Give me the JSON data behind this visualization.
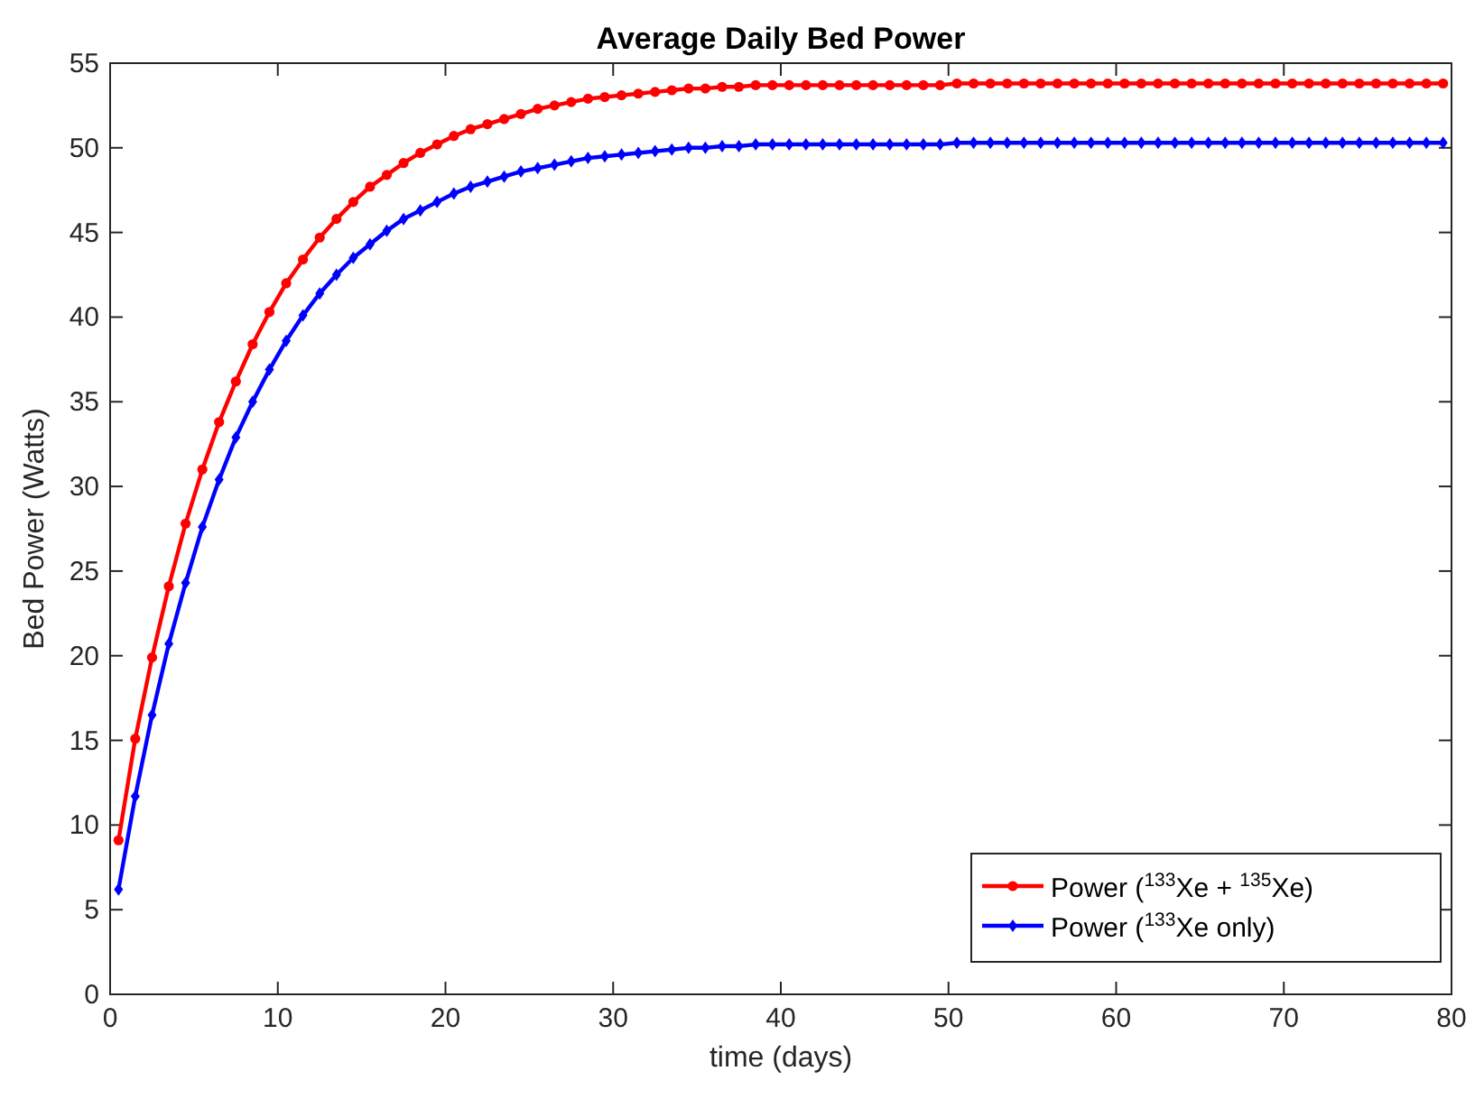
{
  "chart_data": {
    "type": "line",
    "title": "Average Daily Bed Power",
    "xlabel": "time (days)",
    "ylabel": "Bed Power (Watts)",
    "x": [
      0.5,
      1.5,
      2.5,
      3.5,
      4.5,
      5.5,
      6.5,
      7.5,
      8.5,
      9.5,
      10.5,
      11.5,
      12.5,
      13.5,
      14.5,
      15.5,
      16.5,
      17.5,
      18.5,
      19.5,
      20.5,
      21.5,
      22.5,
      23.5,
      24.5,
      25.5,
      26.5,
      27.5,
      28.5,
      29.5,
      30.5,
      31.5,
      32.5,
      33.5,
      34.5,
      35.5,
      36.5,
      37.5,
      38.5,
      39.5,
      40.5,
      41.5,
      42.5,
      43.5,
      44.5,
      45.5,
      46.5,
      47.5,
      48.5,
      49.5,
      50.5,
      51.5,
      52.5,
      53.5,
      54.5,
      55.5,
      56.5,
      57.5,
      58.5,
      59.5,
      60.5,
      61.5,
      62.5,
      63.5,
      64.5,
      65.5,
      66.5,
      67.5,
      68.5,
      69.5,
      70.5,
      71.5,
      72.5,
      73.5,
      74.5,
      75.5,
      76.5,
      77.5,
      78.5,
      79.5
    ],
    "series": [
      {
        "name": "Power ($^{133}$Xe + $^{135}$Xe)",
        "color": "#ff0000",
        "marker": "circle",
        "values": [
          9.1,
          15.1,
          19.9,
          24.1,
          27.8,
          31.0,
          33.8,
          36.2,
          38.4,
          40.3,
          42.0,
          43.4,
          44.7,
          45.8,
          46.8,
          47.7,
          48.4,
          49.1,
          49.7,
          50.2,
          50.7,
          51.1,
          51.4,
          51.7,
          52.0,
          52.3,
          52.5,
          52.7,
          52.9,
          53.0,
          53.1,
          53.2,
          53.3,
          53.4,
          53.5,
          53.5,
          53.6,
          53.6,
          53.7,
          53.7,
          53.7,
          53.7,
          53.7,
          53.7,
          53.7,
          53.7,
          53.7,
          53.7,
          53.7,
          53.7,
          53.8,
          53.8,
          53.8,
          53.8,
          53.8,
          53.8,
          53.8,
          53.8,
          53.8,
          53.8,
          53.8,
          53.8,
          53.8,
          53.8,
          53.8,
          53.8,
          53.8,
          53.8,
          53.8,
          53.8,
          53.8,
          53.8,
          53.8,
          53.8,
          53.8,
          53.8,
          53.8,
          53.8,
          53.8,
          53.8
        ]
      },
      {
        "name": "Power ($^{133}$Xe only)",
        "color": "#0000ff",
        "marker": "diamond",
        "values": [
          6.2,
          11.7,
          16.5,
          20.7,
          24.3,
          27.6,
          30.4,
          32.9,
          35.0,
          36.9,
          38.6,
          40.1,
          41.4,
          42.5,
          43.5,
          44.3,
          45.1,
          45.8,
          46.3,
          46.8,
          47.3,
          47.7,
          48.0,
          48.3,
          48.6,
          48.8,
          49.0,
          49.2,
          49.4,
          49.5,
          49.6,
          49.7,
          49.8,
          49.9,
          50.0,
          50.0,
          50.1,
          50.1,
          50.2,
          50.2,
          50.2,
          50.2,
          50.2,
          50.2,
          50.2,
          50.2,
          50.2,
          50.2,
          50.2,
          50.2,
          50.3,
          50.3,
          50.3,
          50.3,
          50.3,
          50.3,
          50.3,
          50.3,
          50.3,
          50.3,
          50.3,
          50.3,
          50.3,
          50.3,
          50.3,
          50.3,
          50.3,
          50.3,
          50.3,
          50.3,
          50.3,
          50.3,
          50.3,
          50.3,
          50.3,
          50.3,
          50.3,
          50.3,
          50.3,
          50.3
        ]
      }
    ],
    "xlim": [
      0,
      80
    ],
    "xticks": [
      0,
      10,
      20,
      30,
      40,
      50,
      60,
      70,
      80
    ],
    "ylim": [
      0,
      55
    ],
    "yticks": [
      0,
      5,
      10,
      15,
      20,
      25,
      30,
      35,
      40,
      45,
      50,
      55
    ],
    "grid": false,
    "legend": "bottom right",
    "line_style": "solid"
  }
}
